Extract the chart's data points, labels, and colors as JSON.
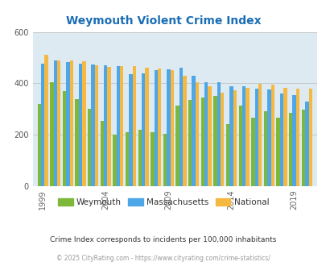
{
  "title": "Weymouth Violent Crime Index",
  "title_color": "#1a6db5",
  "bg_color": "#deeaf1",
  "fig_bg": "#ffffff",
  "ylim": [
    0,
    600
  ],
  "yticks": [
    0,
    200,
    400,
    600
  ],
  "years": [
    1999,
    2000,
    2001,
    2002,
    2003,
    2004,
    2005,
    2006,
    2007,
    2008,
    2009,
    2010,
    2011,
    2012,
    2013,
    2014,
    2015,
    2016,
    2017,
    2018,
    2019,
    2020
  ],
  "weymouth": [
    320,
    405,
    370,
    340,
    300,
    255,
    202,
    210,
    220,
    210,
    205,
    315,
    335,
    345,
    350,
    240,
    315,
    265,
    290,
    265,
    285,
    298
  ],
  "massachusetts": [
    478,
    490,
    482,
    475,
    472,
    470,
    468,
    435,
    438,
    450,
    455,
    462,
    430,
    405,
    405,
    390,
    390,
    378,
    375,
    360,
    355,
    330
  ],
  "national": [
    510,
    490,
    488,
    485,
    470,
    465,
    468,
    467,
    462,
    458,
    452,
    428,
    404,
    390,
    365,
    374,
    383,
    399,
    395,
    382,
    380,
    378
  ],
  "weymouth_color": "#7db83a",
  "mass_color": "#4da6e8",
  "national_color": "#f5b942",
  "bar_width": 0.28,
  "xtick_years": [
    1999,
    2004,
    2009,
    2014,
    2019
  ],
  "subtitle": "Crime Index corresponds to incidents per 100,000 inhabitants",
  "subtitle_color": "#333333",
  "footer": "© 2025 CityRating.com - https://www.cityrating.com/crime-statistics/",
  "footer_color": "#999999"
}
